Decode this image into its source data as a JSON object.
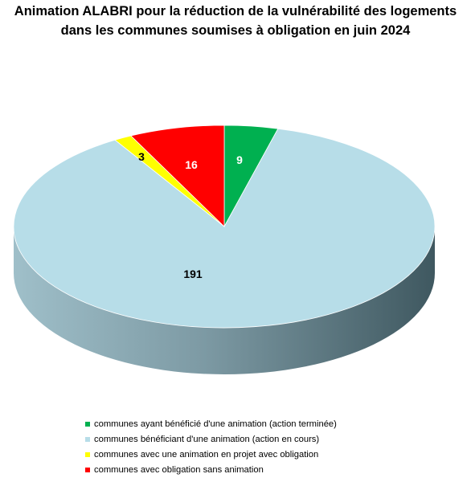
{
  "colors": {
    "background": "#ffffff",
    "text": "#000000"
  },
  "chart_data": {
    "type": "pie",
    "three_d": true,
    "title": [
      "Animation ALABRI pour la réduction de la vulnérabilité des logements",
      "dans les communes soumises à obligation en juin 2024"
    ],
    "legend_position": "bottom",
    "series": [
      {
        "name": "communes ayant bénéficié d'une animation (action terminée)",
        "value": 9,
        "label": "9",
        "color": "#00b050",
        "label_color": "#ffffff"
      },
      {
        "name": "communes bénéficiant d'une animation (action en cours)",
        "value": 191,
        "label": "191",
        "color": "#b7dde8",
        "label_color": "#000000"
      },
      {
        "name": "communes avec une animation en projet avec obligation",
        "value": 3,
        "label": "3",
        "color": "#ffff00",
        "label_color": "#000000"
      },
      {
        "name": "communes  avec obligation sans animation",
        "value": 16,
        "label": "16",
        "color": "#ff0000",
        "label_color": "#ffffff"
      }
    ]
  }
}
